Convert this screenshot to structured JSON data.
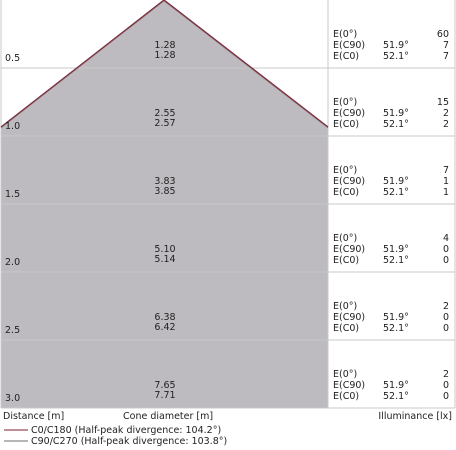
{
  "chart_data": {
    "type": "cone-diagram",
    "distance_unit_label": "Distance [m]",
    "cone_label": "Cone diameter [m]",
    "illuminance_label": "Illuminance [lx]",
    "rows": [
      {
        "distance": "0.5",
        "d1": "1.28",
        "d2": "1.28",
        "e0": 60,
        "e_c90_angle": "51.9°",
        "e_c90": 7,
        "e_c0_angle": "52.1°",
        "e_c0": 7
      },
      {
        "distance": "1.0",
        "d1": "2.55",
        "d2": "2.57",
        "e0": 15,
        "e_c90_angle": "51.9°",
        "e_c90": 2,
        "e_c0_angle": "52.1°",
        "e_c0": 2
      },
      {
        "distance": "1.5",
        "d1": "3.83",
        "d2": "3.85",
        "e0": 7,
        "e_c90_angle": "51.9°",
        "e_c90": 1,
        "e_c0_angle": "52.1°",
        "e_c0": 1
      },
      {
        "distance": "2.0",
        "d1": "5.10",
        "d2": "5.14",
        "e0": 4,
        "e_c90_angle": "51.9°",
        "e_c90": 0,
        "e_c0_angle": "52.1°",
        "e_c0": 0
      },
      {
        "distance": "2.5",
        "d1": "6.38",
        "d2": "6.42",
        "e0": 2,
        "e_c90_angle": "51.9°",
        "e_c90": 0,
        "e_c0_angle": "52.1°",
        "e_c0": 0
      },
      {
        "distance": "3.0",
        "d1": "7.65",
        "d2": "7.71",
        "e0": 2,
        "e_c90_angle": "51.9°",
        "e_c90": 0,
        "e_c0_angle": "52.1°",
        "e_c0": 0
      }
    ],
    "labels": {
      "e0": "E(0°)",
      "ec90": "E(C90)",
      "ec0": "E(C0)"
    },
    "legend": [
      {
        "text": "C0/C180 (Half-peak divergence: 104.2°)",
        "color": "#9b4a5a"
      },
      {
        "text": "C90/C270 (Half-peak divergence: 103.8°)",
        "color": "#8a8a8a"
      }
    ],
    "colors": {
      "cone_fill": "#bdbbbf",
      "cone_edge": "#7a2a3a",
      "grid": "#c8c8c8"
    }
  }
}
